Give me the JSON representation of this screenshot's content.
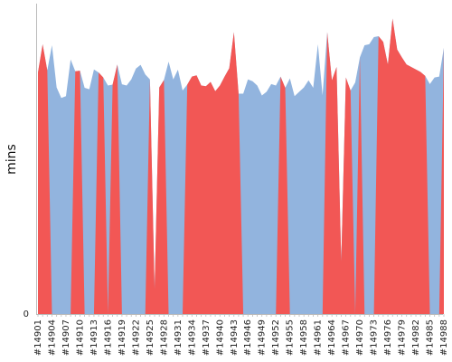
{
  "chart_data": {
    "type": "area",
    "ylabel": "mins",
    "ylim": [
      0,
      100
    ],
    "y_ticks": [
      "0"
    ],
    "colors": {
      "blue_area": "#92b4de",
      "red_area": "#f25755",
      "axis": "#bbbbbb"
    },
    "x_tick_labels": [
      "#14901",
      "#14904",
      "#14907",
      "#14910",
      "#14913",
      "#14916",
      "#14919",
      "#14922",
      "#14925",
      "#14928",
      "#14931",
      "#14934",
      "#14937",
      "#14940",
      "#14943",
      "#14946",
      "#14949",
      "#14952",
      "#14955",
      "#14958",
      "#14961",
      "#14964",
      "#14967",
      "#14970",
      "#14973",
      "#14976",
      "#14979",
      "#14982",
      "#14985",
      "#14988"
    ],
    "series": [
      {
        "values": [
          77.8,
          86.9,
          78.5,
          86.6,
          73.0,
          69.6,
          70.2,
          82.0,
          78.2,
          78.4,
          72.9,
          72.4,
          78.8,
          77.8,
          76.2,
          73.6,
          73.9,
          80.4,
          74.0,
          73.6,
          75.6,
          79.1,
          80.3,
          77.2,
          75.6,
          8.0,
          73.0,
          75.4,
          81.3,
          75.6,
          78.7,
          72.0,
          73.9,
          76.5,
          76.9,
          73.6,
          73.4,
          74.8,
          71.8,
          73.6,
          76.5,
          79.2,
          90.8,
          71.0,
          71.0,
          75.6,
          75.0,
          73.6,
          70.4,
          71.6,
          74.1,
          73.6,
          76.5,
          72.9,
          75.9,
          70.2,
          71.6,
          73.0,
          75.3,
          72.9,
          86.9,
          70.5,
          90.8,
          75.3,
          79.6,
          17.0,
          76.2,
          72.0,
          74.6,
          82.7,
          86.6,
          86.9,
          89.2,
          89.5,
          87.7,
          80.4,
          95.2,
          85.2,
          82.7,
          80.4,
          79.6,
          78.8,
          78.0,
          76.7,
          74.1,
          76.2,
          76.5,
          85.8
        ]
      },
      {
        "values": [
          77.8,
          86.9,
          78.5,
          0,
          0,
          0,
          0,
          0,
          78.2,
          78.4,
          0,
          0,
          0,
          77.8,
          76.2,
          0,
          73.9,
          80.4,
          0,
          0,
          0,
          0,
          0,
          0,
          75.6,
          8.0,
          73.0,
          75.4,
          0,
          0,
          0,
          0,
          73.9,
          76.5,
          76.9,
          73.6,
          73.4,
          74.8,
          71.8,
          73.6,
          76.5,
          79.2,
          90.8,
          71.0,
          0,
          0,
          0,
          0,
          0,
          0,
          0,
          0,
          76.5,
          72.9,
          0,
          0,
          0,
          0,
          0,
          0,
          0,
          0,
          90.8,
          75.3,
          79.6,
          17.0,
          76.2,
          72.0,
          0,
          82.7,
          0,
          0,
          0,
          89.5,
          87.7,
          80.4,
          95.2,
          85.2,
          82.7,
          80.4,
          79.6,
          78.8,
          78.0,
          76.7,
          0,
          0,
          0,
          85.8
        ]
      }
    ]
  }
}
